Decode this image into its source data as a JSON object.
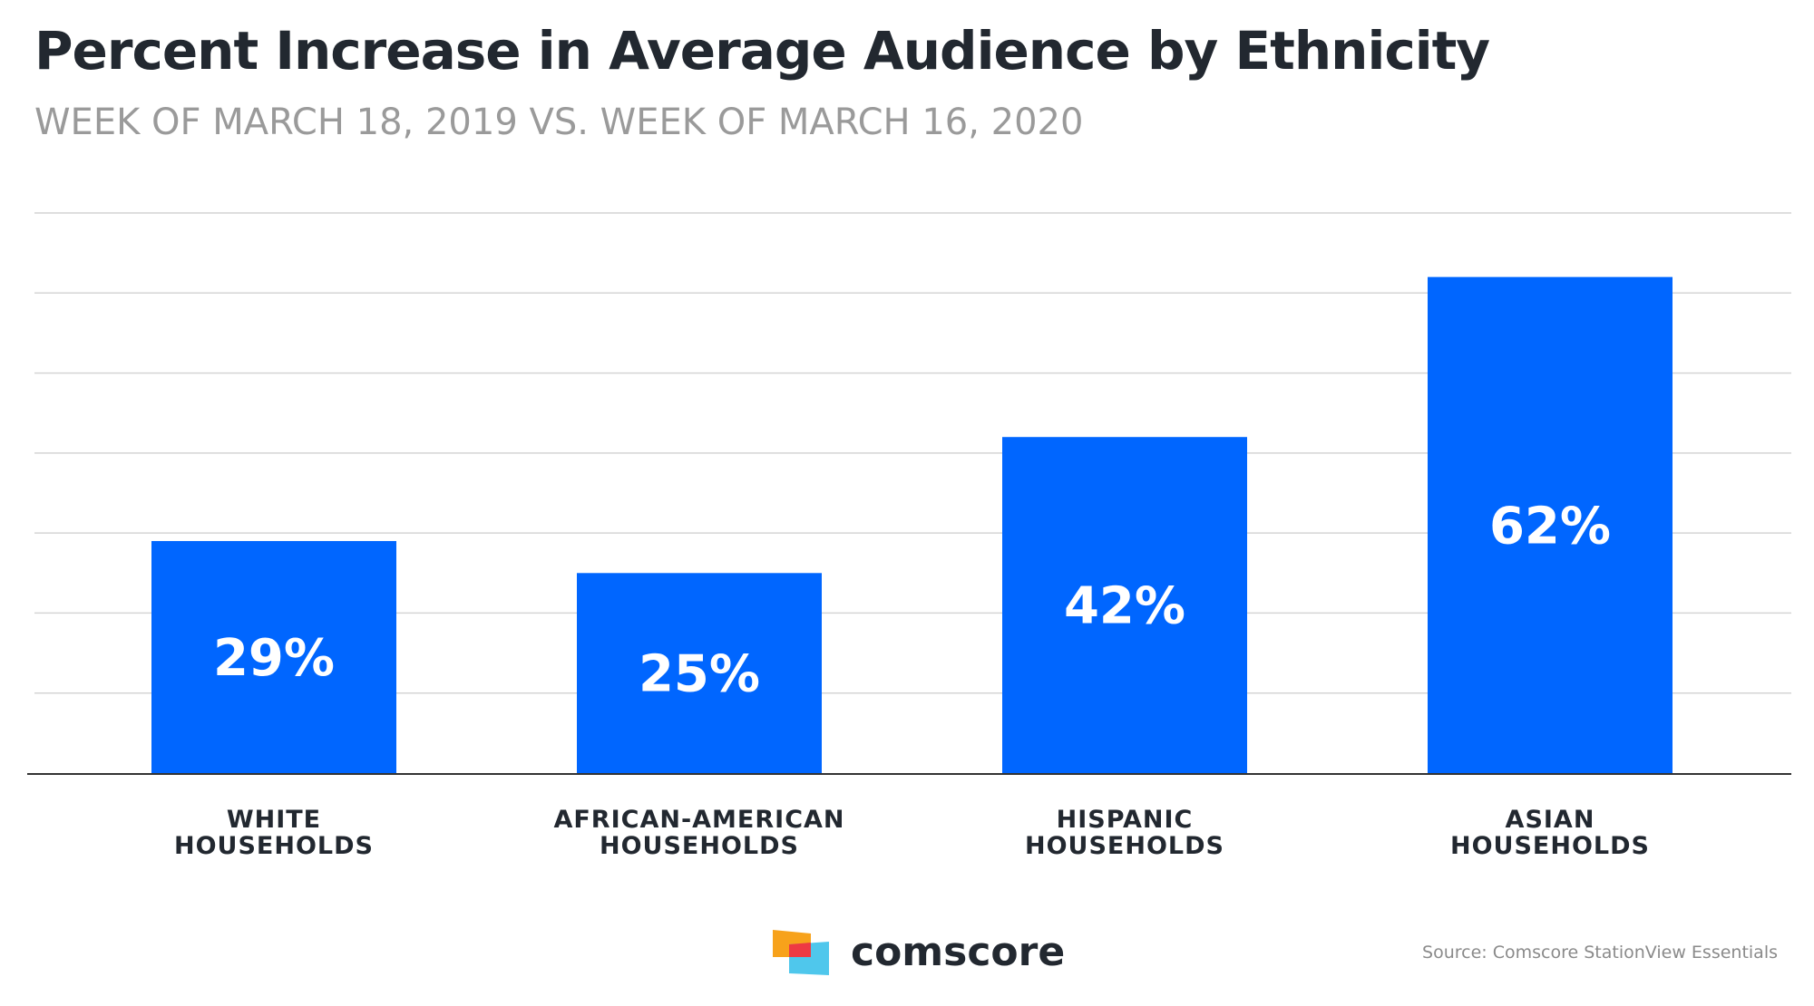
{
  "chart_data": {
    "type": "bar",
    "title": "Percent Increase in Average Audience by Ethnicity",
    "subtitle": "WEEK OF MARCH 18, 2019 VS. WEEK OF MARCH 16, 2020",
    "categories": [
      [
        "WHITE",
        "HOUSEHOLDS"
      ],
      [
        "AFRICAN-AMERICAN",
        "HOUSEHOLDS"
      ],
      [
        "HISPANIC",
        "HOUSEHOLDS"
      ],
      [
        "ASIAN",
        "HOUSEHOLDS"
      ]
    ],
    "values": [
      29,
      25,
      42,
      62
    ],
    "data_labels": [
      "29%",
      "25%",
      "42%",
      "62%"
    ],
    "ylim": [
      0,
      70
    ],
    "grid": true,
    "xlabel": "",
    "ylabel": ""
  },
  "colors": {
    "bar": "#0066ff",
    "grid": "#d4d4d4",
    "axis": "#333333",
    "logo_orange": "#f7a21b",
    "logo_red": "#ee3a43",
    "logo_cyan": "#4fc7ec"
  },
  "footer": {
    "brand": "comscore",
    "source": "Source: Comscore StationView Essentials"
  }
}
